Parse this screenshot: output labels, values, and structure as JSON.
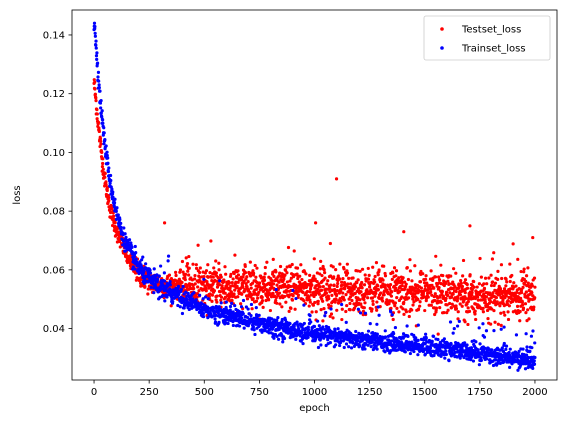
{
  "chart_data": {
    "type": "scatter",
    "title": "",
    "xlabel": "epoch",
    "ylabel": "loss",
    "xlim": [
      -100,
      2100
    ],
    "ylim": [
      0.0225,
      0.1485
    ],
    "x_ticks": [
      0,
      250,
      500,
      750,
      1000,
      1250,
      1500,
      1750,
      2000
    ],
    "x_tick_labels": [
      "0",
      "250",
      "500",
      "750",
      "1000",
      "1250",
      "1500",
      "1750",
      "2000"
    ],
    "y_ticks": [
      0.04,
      0.06,
      0.08,
      0.1,
      0.12,
      0.14
    ],
    "y_tick_labels": [
      "0.04",
      "0.06",
      "0.08",
      "0.10",
      "0.12",
      "0.14"
    ],
    "grid": false,
    "legend_position": "top-right",
    "epochs": [
      0,
      2000
    ],
    "series": [
      {
        "name": "Testset_loss",
        "color": "#ff0000",
        "marker": "point",
        "trend": [
          [
            0,
            0.124
          ],
          [
            25,
            0.105
          ],
          [
            50,
            0.09
          ],
          [
            75,
            0.08
          ],
          [
            100,
            0.074
          ],
          [
            125,
            0.069
          ],
          [
            150,
            0.065
          ],
          [
            200,
            0.059
          ],
          [
            250,
            0.056
          ],
          [
            300,
            0.055
          ],
          [
            400,
            0.0545
          ],
          [
            600,
            0.054
          ],
          [
            1000,
            0.0535
          ],
          [
            1500,
            0.0525
          ],
          [
            1700,
            0.051
          ],
          [
            2000,
            0.051
          ]
        ],
        "outliers": [
          [
            320,
            0.076
          ],
          [
            1100,
            0.091
          ],
          [
            1005,
            0.076
          ],
          [
            1405,
            0.073
          ],
          [
            1705,
            0.075
          ],
          [
            1990,
            0.071
          ]
        ]
      },
      {
        "name": "Trainset_loss",
        "color": "#0000ff",
        "marker": "point",
        "trend": [
          [
            0,
            0.144
          ],
          [
            10,
            0.136
          ],
          [
            25,
            0.12
          ],
          [
            50,
            0.102
          ],
          [
            75,
            0.089
          ],
          [
            100,
            0.08
          ],
          [
            125,
            0.073
          ],
          [
            150,
            0.068
          ],
          [
            200,
            0.061
          ],
          [
            250,
            0.057
          ],
          [
            300,
            0.054
          ],
          [
            400,
            0.0505
          ],
          [
            500,
            0.0465
          ],
          [
            600,
            0.0445
          ],
          [
            750,
            0.042
          ],
          [
            1000,
            0.038
          ],
          [
            1250,
            0.036
          ],
          [
            1500,
            0.034
          ],
          [
            1750,
            0.0315
          ],
          [
            2000,
            0.0292
          ]
        ],
        "outliers": []
      }
    ]
  }
}
